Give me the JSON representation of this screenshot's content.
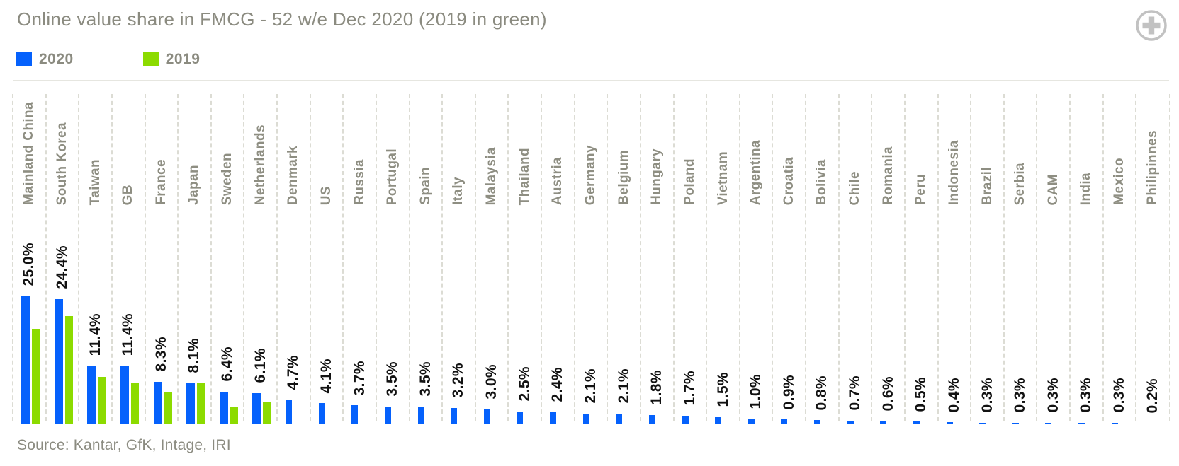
{
  "header": {
    "title": "Online value share in FMCG - 52 w/e Dec 2020 (2019 in green)"
  },
  "legend": [
    {
      "label": "2020",
      "color": "#0561fc"
    },
    {
      "label": "2019",
      "color": "#8cdb00"
    }
  ],
  "icons": {
    "zoom": "plus-circle-icon"
  },
  "source": "Source: Kantar, GfK, Intage, IRI",
  "colors": {
    "bar_2020": "#0561fc",
    "bar_2019": "#8cdb00",
    "label_gray": "#8b8b80",
    "value_text": "#121212",
    "gridline": "#dcdcd4",
    "icon_gray": "#c2c2c2"
  },
  "chart_data": {
    "type": "bar",
    "title": "Online value share in FMCG - 52 w/e Dec 2020 (2019 in green)",
    "xlabel": "",
    "ylabel": "",
    "ylim": [
      0,
      32
    ],
    "grid": "vertical dashed separators between categories",
    "legend_position": "top-left",
    "value_label_format": "#.0%",
    "categories": [
      "Mainland China",
      "South Korea",
      "Taiwan",
      "GB",
      "France",
      "Japan",
      "Sweden",
      "Netherlands",
      "Denmark",
      "US",
      "Russia",
      "Portugal",
      "Spain",
      "Italy",
      "Malaysia",
      "Thailand",
      "Austria",
      "Germany",
      "Belgium",
      "Hungary",
      "Poland",
      "Vietnam",
      "Argentina",
      "Croatia",
      "Bolivia",
      "Chile",
      "Romania",
      "Peru",
      "Indonesia",
      "Brazil",
      "Serbia",
      "CAM",
      "India",
      "Mexico",
      "Philipinnes"
    ],
    "series": [
      {
        "name": "2020",
        "color": "#0561fc",
        "values": [
          25.0,
          24.4,
          11.4,
          11.4,
          8.3,
          8.1,
          6.4,
          6.1,
          4.7,
          4.1,
          3.7,
          3.5,
          3.5,
          3.2,
          3.0,
          2.5,
          2.4,
          2.1,
          2.1,
          1.8,
          1.7,
          1.5,
          1.0,
          0.9,
          0.8,
          0.7,
          0.6,
          0.5,
          0.4,
          0.3,
          0.3,
          0.3,
          0.3,
          0.3,
          0.2
        ]
      },
      {
        "name": "2019",
        "color": "#8cdb00",
        "note": "2019 bars drawn only for first 8 markets; unlabeled, values estimated from bar heights",
        "values": [
          18.6,
          21.1,
          9.2,
          8.0,
          6.4,
          8.0,
          3.5,
          4.3,
          null,
          null,
          null,
          null,
          null,
          null,
          null,
          null,
          null,
          null,
          null,
          null,
          null,
          null,
          null,
          null,
          null,
          null,
          null,
          null,
          null,
          null,
          null,
          null,
          null,
          null,
          null
        ]
      }
    ]
  }
}
